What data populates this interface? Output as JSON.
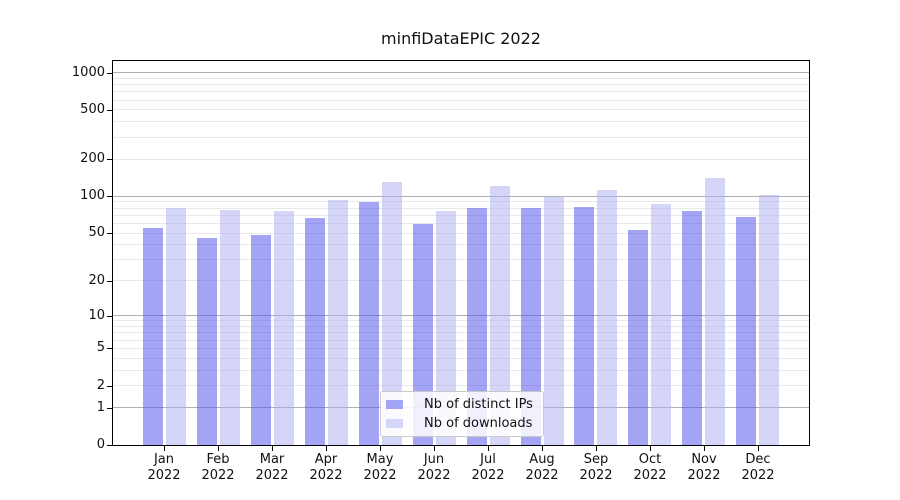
{
  "chart_data": {
    "type": "bar",
    "title": "minfiDataEPIC 2022",
    "categories": [
      "Jan 2022",
      "Feb 2022",
      "Mar 2022",
      "Apr 2022",
      "May 2022",
      "Jun 2022",
      "Jul 2022",
      "Aug 2022",
      "Sep 2022",
      "Oct 2022",
      "Nov 2022",
      "Dec 2022"
    ],
    "series": [
      {
        "name": "Nb of distinct IPs",
        "values": [
          55,
          46,
          48,
          67,
          90,
          59,
          81,
          80,
          82,
          53,
          76,
          68
        ],
        "fill": "rgba(80,80,235,0.52)",
        "swatch": "#a4a4f4"
      },
      {
        "name": "Nb of downloads",
        "values": [
          80,
          78,
          76,
          94,
          130,
          76,
          122,
          98,
          113,
          87,
          142,
          102
        ],
        "fill": "rgba(172,172,242,0.5)",
        "swatch": "#d6d6f8"
      }
    ],
    "xlabel": "",
    "ylabel": "",
    "y_scale": "log1p",
    "y_ticks": [
      0,
      1,
      2,
      5,
      10,
      20,
      50,
      100,
      200,
      500,
      1000
    ],
    "ylim": [
      0,
      1240
    ],
    "grid": true,
    "legend_position": "lower center",
    "colors": {
      "major_grid": "#b0b0b0",
      "minor_grid": "#e9e9e9",
      "axis": "#000000",
      "text": "#111111"
    }
  }
}
